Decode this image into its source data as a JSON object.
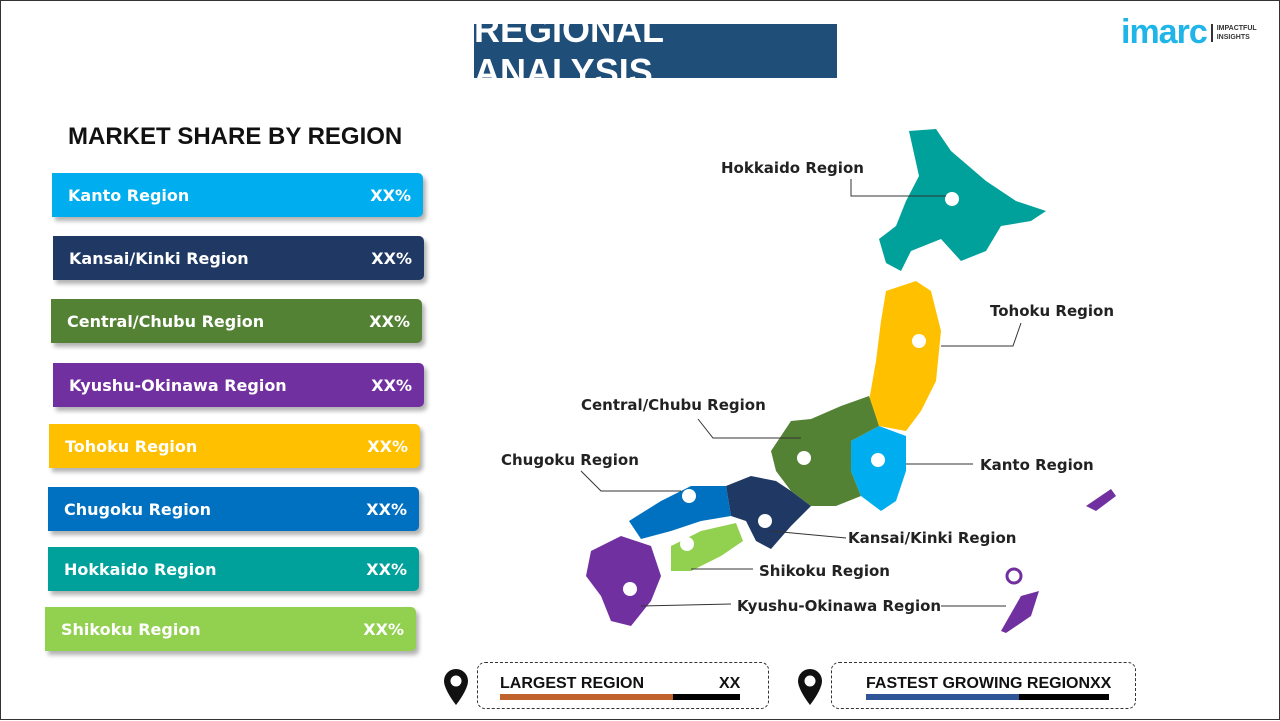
{
  "header": {
    "title": "REGIONAL ANALYSIS",
    "logo_text": "imarc",
    "logo_tagline": "IMPACTFUL INSIGHTS"
  },
  "market_share": {
    "title": "MARKET SHARE BY REGION",
    "items": [
      {
        "label": "Kanto Region",
        "value": "XX%",
        "color": "#00aeef"
      },
      {
        "label": "Kansai/Kinki Region",
        "value": "XX%",
        "color": "#1f3864"
      },
      {
        "label": "Central/Chubu Region",
        "value": "XX%",
        "color": "#548235"
      },
      {
        "label": "Kyushu-Okinawa Region",
        "value": "XX%",
        "color": "#7030a0"
      },
      {
        "label": "Tohoku Region",
        "value": "XX%",
        "color": "#ffc000"
      },
      {
        "label": "Chugoku Region",
        "value": "XX%",
        "color": "#0070c0"
      },
      {
        "label": "Hokkaido Region",
        "value": "XX%",
        "color": "#00a19a"
      },
      {
        "label": "Shikoku Region",
        "value": "XX%",
        "color": "#92d050"
      }
    ]
  },
  "map_labels": {
    "hokkaido": "Hokkaido Region",
    "tohoku": "Tohoku Region",
    "central": "Central/Chubu Region",
    "kanto": "Kanto Region",
    "chugoku": "Chugoku Region",
    "kansai": "Kansai/Kinki Region",
    "shikoku": "Shikoku Region",
    "kyushu": "Kyushu-Okinawa Region"
  },
  "footer": {
    "largest": {
      "label": "LARGEST REGION",
      "value": "XX",
      "fill_percent": 72,
      "color": "#c0622b"
    },
    "fastest": {
      "label": "FASTEST GROWING REGION",
      "value": "XX",
      "fill_percent": 63,
      "color": "#2f5597"
    }
  }
}
